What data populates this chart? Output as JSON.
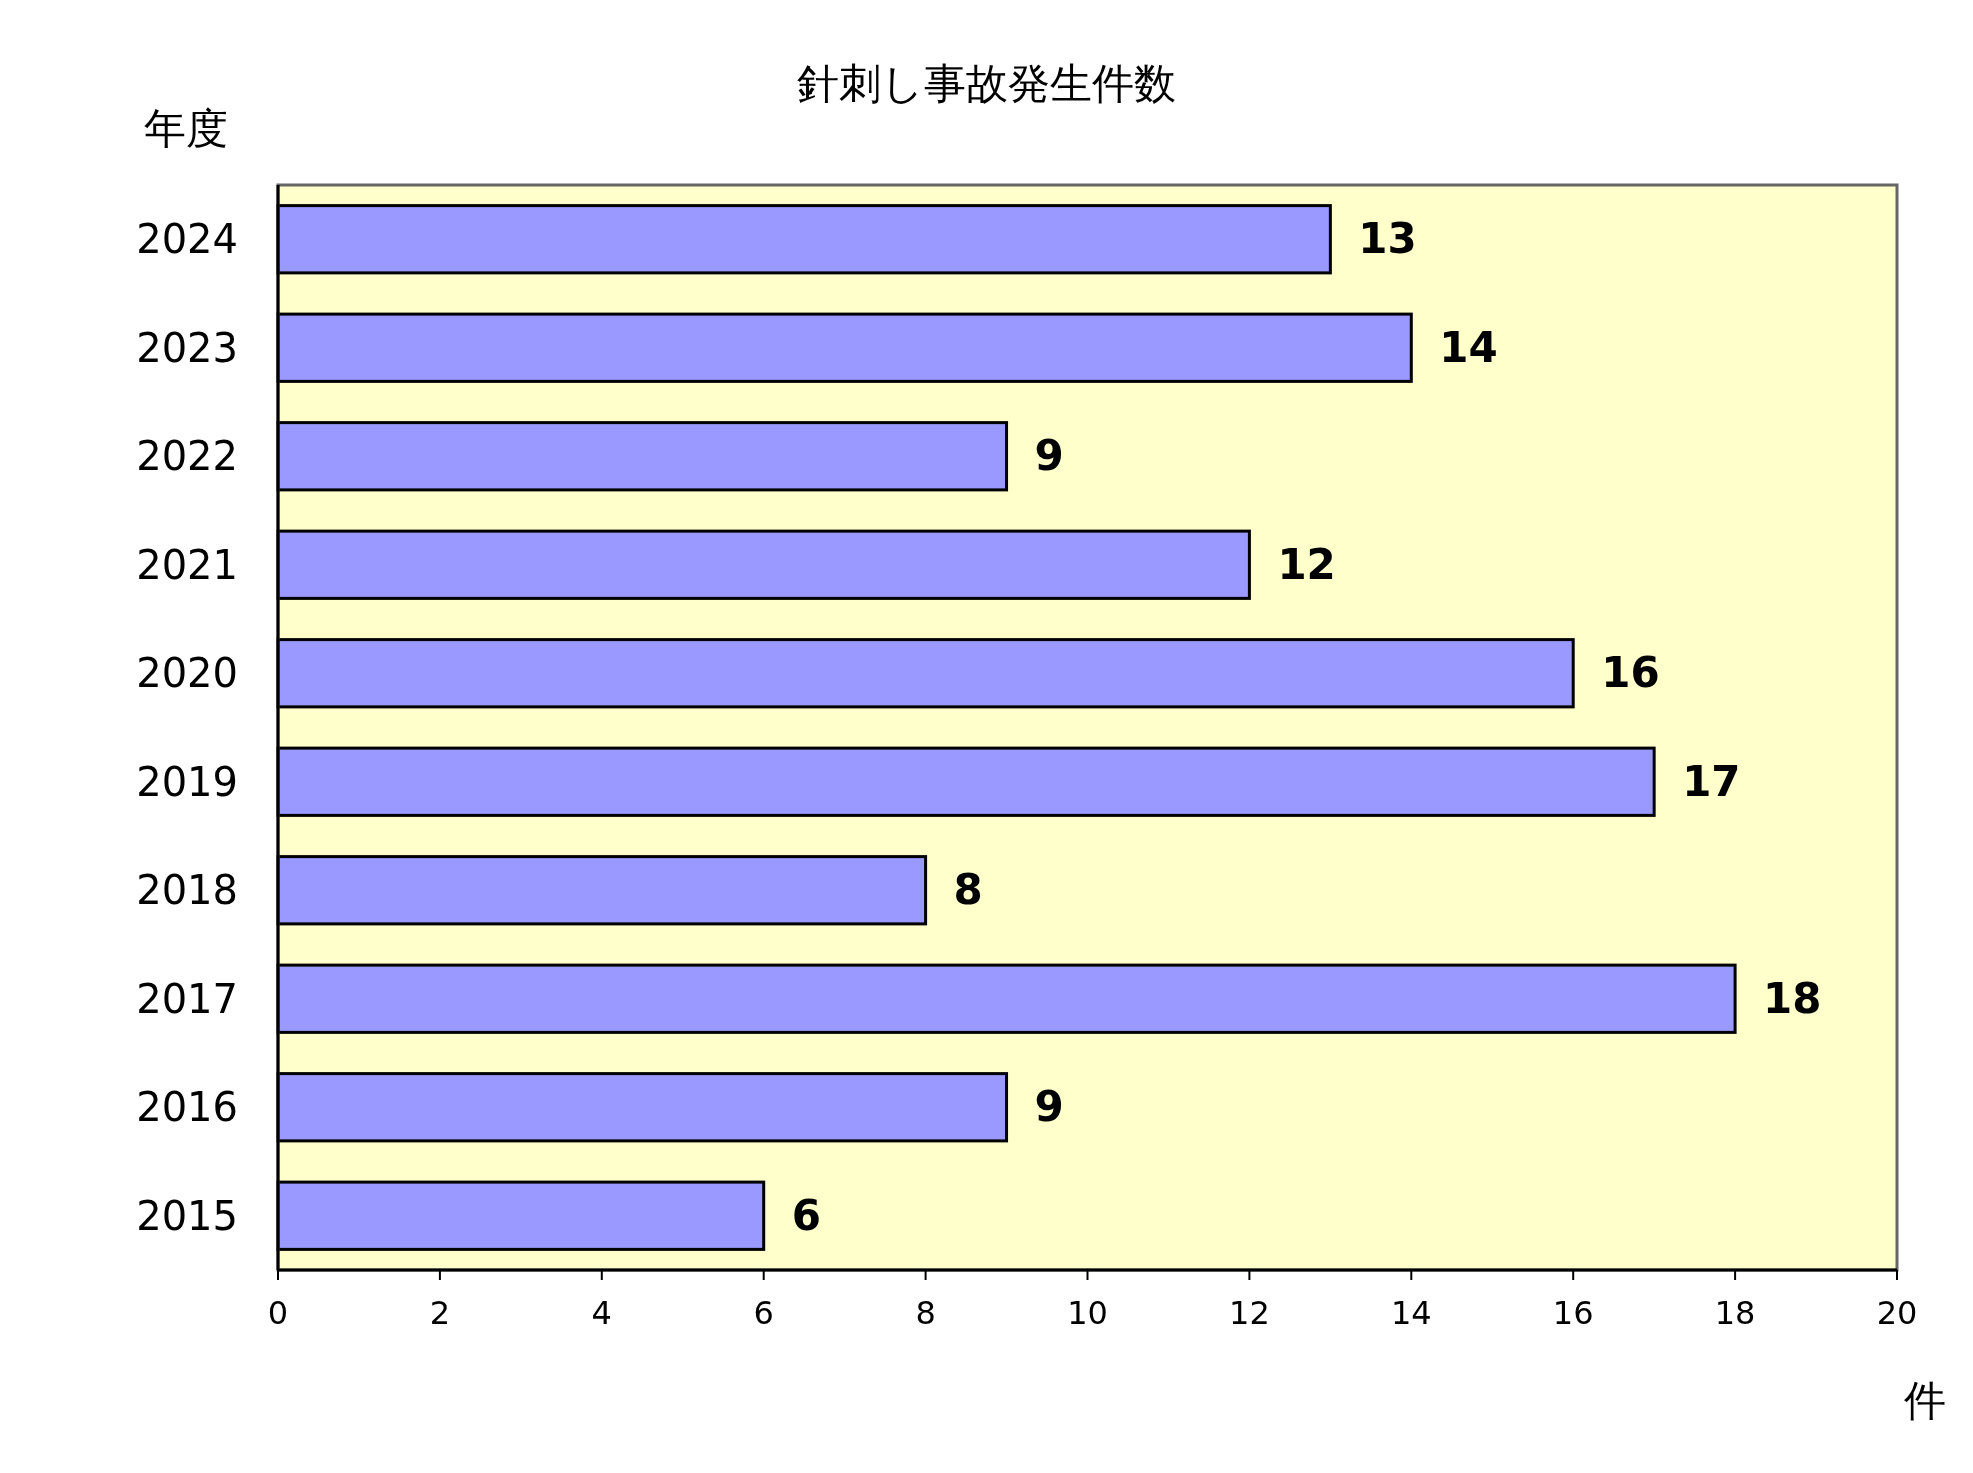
{
  "chart_data": {
    "type": "bar",
    "orientation": "horizontal",
    "title": "針刺し事故発生件数",
    "ylabel": "年度",
    "xlabel": "件",
    "categories": [
      "2024",
      "2023",
      "2022",
      "2021",
      "2020",
      "2019",
      "2018",
      "2017",
      "2016",
      "2015"
    ],
    "values": [
      13,
      14,
      9,
      12,
      16,
      17,
      8,
      18,
      9,
      6
    ],
    "color": "#9999ff",
    "xlim": [
      0,
      20
    ],
    "xticks": [
      0,
      2,
      4,
      6,
      8,
      10,
      12,
      14,
      16,
      18,
      20
    ],
    "data_labels": true,
    "grid": false
  }
}
